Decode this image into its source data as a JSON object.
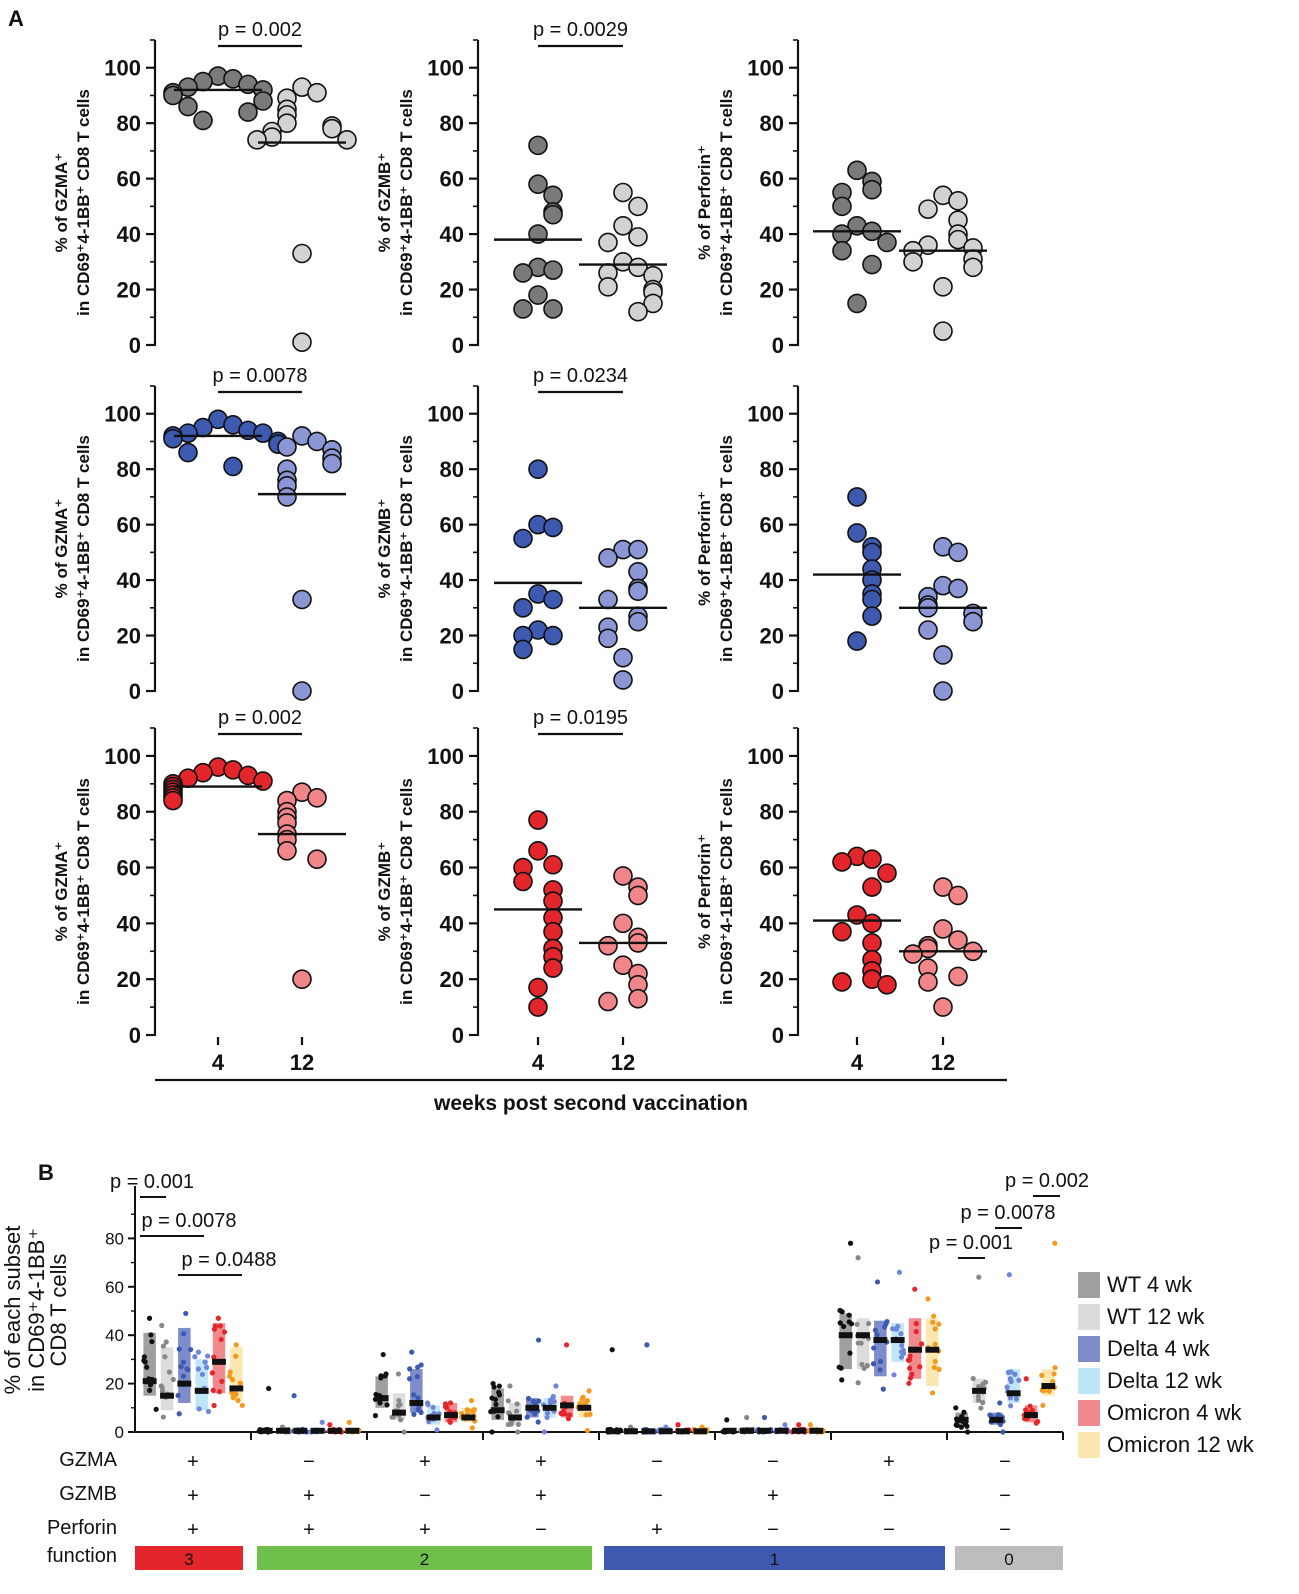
{
  "panel_a_label": "A",
  "panel_b_label": "B",
  "x_axis_title": "weeks post second vaccination",
  "x_ticks": [
    "4",
    "12"
  ],
  "colors": {
    "wt4": "#7a7a7a",
    "wt12": "#d2d2d2",
    "delta4": "#3d5ab0",
    "delta12": "#8b96d4",
    "omicron4": "#e3262b",
    "omicron12": "#f0868a"
  },
  "chart_data": [
    {
      "type": "scatter",
      "id": "A-r1c1",
      "ylabel_line1": "% of GZMA⁺",
      "ylabel_line2": "in CD69⁺4-1BB⁺ CD8 T cells",
      "ylim": [
        0,
        110
      ],
      "yticks": [
        0,
        20,
        40,
        60,
        80,
        100
      ],
      "categories": [
        "4",
        "12"
      ],
      "pvalue": "p = 0.002",
      "series": [
        {
          "name": "WT 4 wk",
          "color": "#7a7a7a",
          "mean": 92,
          "values": [
            97,
            96,
            95,
            94,
            93,
            92,
            91,
            90,
            88,
            86,
            81,
            84
          ]
        },
        {
          "name": "WT 12 wk",
          "color": "#d2d2d2",
          "mean": 73,
          "values": [
            93,
            91,
            89,
            85,
            83,
            80,
            79,
            78,
            77,
            75,
            74,
            74,
            33,
            1
          ]
        }
      ]
    },
    {
      "type": "scatter",
      "id": "A-r1c2",
      "ylabel_line1": "% of GZMB⁺",
      "ylabel_line2": "in CD69⁺4-1BB⁺ CD8 T cells",
      "ylim": [
        0,
        110
      ],
      "yticks": [
        0,
        20,
        40,
        60,
        80,
        100
      ],
      "categories": [
        "4",
        "12"
      ],
      "pvalue": "p = 0.0029",
      "series": [
        {
          "name": "WT 4 wk",
          "color": "#7a7a7a",
          "mean": 38,
          "values": [
            72,
            58,
            54,
            48,
            47,
            40,
            28,
            27,
            26,
            18,
            13,
            13
          ]
        },
        {
          "name": "WT 12 wk",
          "color": "#d2d2d2",
          "mean": 29,
          "values": [
            55,
            50,
            43,
            39,
            37,
            30,
            28,
            26,
            25,
            21,
            20,
            19,
            15,
            12
          ]
        }
      ]
    },
    {
      "type": "scatter",
      "id": "A-r1c3",
      "ylabel_line1": "% of Perforin⁺",
      "ylabel_line2": "in CD69⁺4-1BB⁺ CD8 T cells",
      "ylim": [
        0,
        110
      ],
      "yticks": [
        0,
        20,
        40,
        60,
        80,
        100
      ],
      "categories": [
        "4",
        "12"
      ],
      "pvalue": "",
      "series": [
        {
          "name": "WT 4 wk",
          "color": "#7a7a7a",
          "mean": 41,
          "values": [
            63,
            59,
            56,
            55,
            50,
            43,
            41,
            40,
            37,
            34,
            29,
            15
          ]
        },
        {
          "name": "WT 12 wk",
          "color": "#d2d2d2",
          "mean": 34,
          "values": [
            54,
            52,
            49,
            45,
            40,
            38,
            36,
            35,
            34,
            31,
            30,
            28,
            21,
            5
          ]
        }
      ]
    },
    {
      "type": "scatter",
      "id": "A-r2c1",
      "ylabel_line1": "% of GZMA⁺",
      "ylabel_line2": "in CD69⁺4-1BB⁺ CD8 T cells",
      "ylim": [
        0,
        110
      ],
      "yticks": [
        0,
        20,
        40,
        60,
        80,
        100
      ],
      "categories": [
        "4",
        "12"
      ],
      "pvalue": "p = 0.0078",
      "series": [
        {
          "name": "Delta 4 wk",
          "color": "#3d5ab0",
          "mean": 92,
          "values": [
            98,
            96,
            95,
            94,
            93,
            93,
            92,
            91,
            90,
            89,
            86,
            81
          ]
        },
        {
          "name": "Delta 12 wk",
          "color": "#8b96d4",
          "mean": 71,
          "values": [
            92,
            90,
            88,
            87,
            84,
            82,
            80,
            76,
            74,
            70,
            33,
            0
          ]
        }
      ]
    },
    {
      "type": "scatter",
      "id": "A-r2c2",
      "ylabel_line1": "% of GZMB⁺",
      "ylabel_line2": "in CD69⁺4-1BB⁺ CD8 T cells",
      "ylim": [
        0,
        110
      ],
      "yticks": [
        0,
        20,
        40,
        60,
        80,
        100
      ],
      "categories": [
        "4",
        "12"
      ],
      "pvalue": "p = 0.0234",
      "series": [
        {
          "name": "Delta 4 wk",
          "color": "#3d5ab0",
          "mean": 39,
          "values": [
            80,
            60,
            59,
            55,
            35,
            33,
            30,
            22,
            20,
            20,
            15
          ]
        },
        {
          "name": "Delta 12 wk",
          "color": "#8b96d4",
          "mean": 30,
          "values": [
            51,
            51,
            48,
            43,
            37,
            36,
            33,
            27,
            25,
            23,
            19,
            12,
            4
          ]
        }
      ]
    },
    {
      "type": "scatter",
      "id": "A-r2c3",
      "ylabel_line1": "% of Perforin⁺",
      "ylabel_line2": "in CD69⁺4-1BB⁺ CD8 T cells",
      "ylim": [
        0,
        110
      ],
      "yticks": [
        0,
        20,
        40,
        60,
        80,
        100
      ],
      "categories": [
        "4",
        "12"
      ],
      "pvalue": "",
      "series": [
        {
          "name": "Delta 4 wk",
          "color": "#3d5ab0",
          "mean": 42,
          "values": [
            70,
            57,
            52,
            50,
            44,
            40,
            35,
            33,
            27,
            18
          ]
        },
        {
          "name": "Delta 12 wk",
          "color": "#8b96d4",
          "mean": 30,
          "values": [
            52,
            50,
            38,
            37,
            34,
            31,
            30,
            28,
            25,
            22,
            13,
            0
          ]
        }
      ]
    },
    {
      "type": "scatter",
      "id": "A-r3c1",
      "ylabel_line1": "% of GZMA⁺",
      "ylabel_line2": "in CD69⁺4-1BB⁺ CD8 T cells",
      "ylim": [
        0,
        110
      ],
      "yticks": [
        0,
        20,
        40,
        60,
        80,
        100
      ],
      "categories": [
        "4",
        "12"
      ],
      "pvalue": "p = 0.002",
      "series": [
        {
          "name": "Omicron 4 wk",
          "color": "#e3262b",
          "mean": 89,
          "values": [
            96,
            95,
            94,
            93,
            92,
            91,
            90,
            89,
            88,
            87,
            86,
            85,
            84
          ]
        },
        {
          "name": "Omicron 12 wk",
          "color": "#f0868a",
          "mean": 72,
          "values": [
            87,
            85,
            84,
            80,
            78,
            76,
            72,
            70,
            66,
            63,
            20
          ]
        }
      ]
    },
    {
      "type": "scatter",
      "id": "A-r3c2",
      "ylabel_line1": "% of GZMB⁺",
      "ylabel_line2": "in CD69⁺4-1BB⁺ CD8 T cells",
      "ylim": [
        0,
        110
      ],
      "yticks": [
        0,
        20,
        40,
        60,
        80,
        100
      ],
      "categories": [
        "4",
        "12"
      ],
      "pvalue": "p = 0.0195",
      "series": [
        {
          "name": "Omicron 4 wk",
          "color": "#e3262b",
          "mean": 45,
          "values": [
            77,
            66,
            61,
            60,
            55,
            52,
            48,
            42,
            37,
            31,
            28,
            24,
            17,
            10
          ]
        },
        {
          "name": "Omicron 12 wk",
          "color": "#f0868a",
          "mean": 33,
          "values": [
            57,
            53,
            50,
            40,
            35,
            33,
            32,
            25,
            22,
            18,
            13,
            12
          ]
        }
      ]
    },
    {
      "type": "scatter",
      "id": "A-r3c3",
      "ylabel_line1": "% of Perforin⁺",
      "ylabel_line2": "in CD69⁺4-1BB⁺ CD8 T cells",
      "ylim": [
        0,
        110
      ],
      "yticks": [
        0,
        20,
        40,
        60,
        80,
        100
      ],
      "categories": [
        "4",
        "12"
      ],
      "pvalue": "",
      "series": [
        {
          "name": "Omicron 4 wk",
          "color": "#e3262b",
          "mean": 41,
          "values": [
            64,
            63,
            62,
            58,
            53,
            43,
            40,
            37,
            33,
            27,
            23,
            20,
            19,
            18
          ]
        },
        {
          "name": "Omicron 12 wk",
          "color": "#f0868a",
          "mean": 30,
          "values": [
            53,
            50,
            38,
            34,
            32,
            31,
            30,
            29,
            24,
            21,
            19,
            10
          ]
        }
      ]
    },
    {
      "type": "bar",
      "id": "B",
      "ylabel_line1": "% of each subset",
      "ylabel_line2": "in CD69⁺4-1BB⁺",
      "ylabel_line3": "CD8 T cells",
      "ylim": [
        0,
        100
      ],
      "yticks": [
        0,
        20,
        40,
        60,
        80
      ],
      "series_names": [
        "WT 4 wk",
        "WT 12 wk",
        "Delta 4 wk",
        "Delta 12 wk",
        "Omicron 4 wk",
        "Omicron 12 wk"
      ],
      "group_medians": [
        [
          21,
          15,
          20,
          17,
          29,
          18
        ],
        [
          0.5,
          0.5,
          0.5,
          0.5,
          0.5,
          0.5
        ],
        [
          14,
          8,
          12,
          6,
          7,
          6
        ],
        [
          9,
          6,
          10,
          10,
          11,
          10
        ],
        [
          0.3,
          0.3,
          0.3,
          0.3,
          0.3,
          0.3
        ],
        [
          0.5,
          0.5,
          0.5,
          0.5,
          0.5,
          0.5
        ],
        [
          40,
          40,
          38,
          38,
          34,
          34
        ],
        [
          5,
          17,
          5,
          16,
          7,
          19
        ]
      ],
      "group_upper": [
        [
          41,
          35,
          43,
          30,
          45,
          35
        ],
        [
          1,
          1,
          1,
          1,
          1,
          1
        ],
        [
          23,
          16,
          26,
          11,
          12,
          10
        ],
        [
          18,
          12,
          14,
          14,
          15,
          14
        ],
        [
          1,
          1,
          1,
          1,
          1,
          1
        ],
        [
          1,
          1,
          1,
          1,
          1,
          1
        ],
        [
          49,
          47,
          46,
          45,
          47,
          47
        ],
        [
          8,
          22,
          8,
          26,
          11,
          26
        ]
      ],
      "group_lower": [
        [
          15,
          9,
          12,
          9,
          16,
          13
        ],
        [
          0,
          0,
          0,
          0,
          0,
          0
        ],
        [
          10,
          5,
          8,
          3,
          4,
          4
        ],
        [
          5,
          3,
          6,
          6,
          6,
          6
        ],
        [
          0,
          0,
          0,
          0,
          0,
          0
        ],
        [
          0,
          0,
          0,
          0,
          0,
          0
        ],
        [
          26,
          26,
          23,
          29,
          22,
          19
        ],
        [
          2,
          12,
          3,
          12,
          4,
          15
        ]
      ],
      "group_max": [
        [
          47,
          44,
          49,
          33,
          47,
          36
        ],
        [
          18,
          2,
          15,
          4,
          3,
          4
        ],
        [
          32,
          24,
          33,
          12,
          12,
          13
        ],
        [
          20,
          19,
          38,
          19,
          36,
          17
        ],
        [
          34,
          2,
          36,
          2,
          3,
          2
        ],
        [
          5,
          6,
          6,
          3,
          3,
          3
        ],
        [
          78,
          72,
          62,
          66,
          59,
          55
        ],
        [
          10,
          64,
          12,
          65,
          22,
          78
        ]
      ],
      "gzma": [
        "+",
        "−",
        "+",
        "+",
        "−",
        "−",
        "+",
        "−"
      ],
      "gzmb": [
        "+",
        "+",
        "−",
        "+",
        "−",
        "+",
        "−",
        "−"
      ],
      "perforin": [
        "+",
        "+",
        "+",
        "−",
        "+",
        "−",
        "−",
        "−"
      ],
      "row_labels": [
        "GZMA",
        "GZMB",
        "Perforin",
        "function"
      ],
      "function_segments": [
        {
          "label": "3",
          "color": "#e3262b"
        },
        {
          "label": "2",
          "color": "#6ec04a"
        },
        {
          "label": "1",
          "color": "#3d5ab0"
        },
        {
          "label": "0",
          "color": "#bdbdbd"
        }
      ],
      "pvalues": [
        "p = 0.001",
        "p = 0.0078",
        "p = 0.0488",
        "p = 0.001",
        "p = 0.0078",
        "p = 0.002"
      ],
      "legend": [
        {
          "label": "WT 4 wk",
          "color": "#a0a0a0"
        },
        {
          "label": "WT 12 wk",
          "color": "#dcdcdc"
        },
        {
          "label": "Delta 4 wk",
          "color": "#7e8ccc"
        },
        {
          "label": "Delta 12 wk",
          "color": "#bfe6f7"
        },
        {
          "label": "Omicron 4 wk",
          "color": "#f08a8c"
        },
        {
          "label": "Omicron 12 wk",
          "color": "#fbe8b0"
        }
      ]
    }
  ]
}
